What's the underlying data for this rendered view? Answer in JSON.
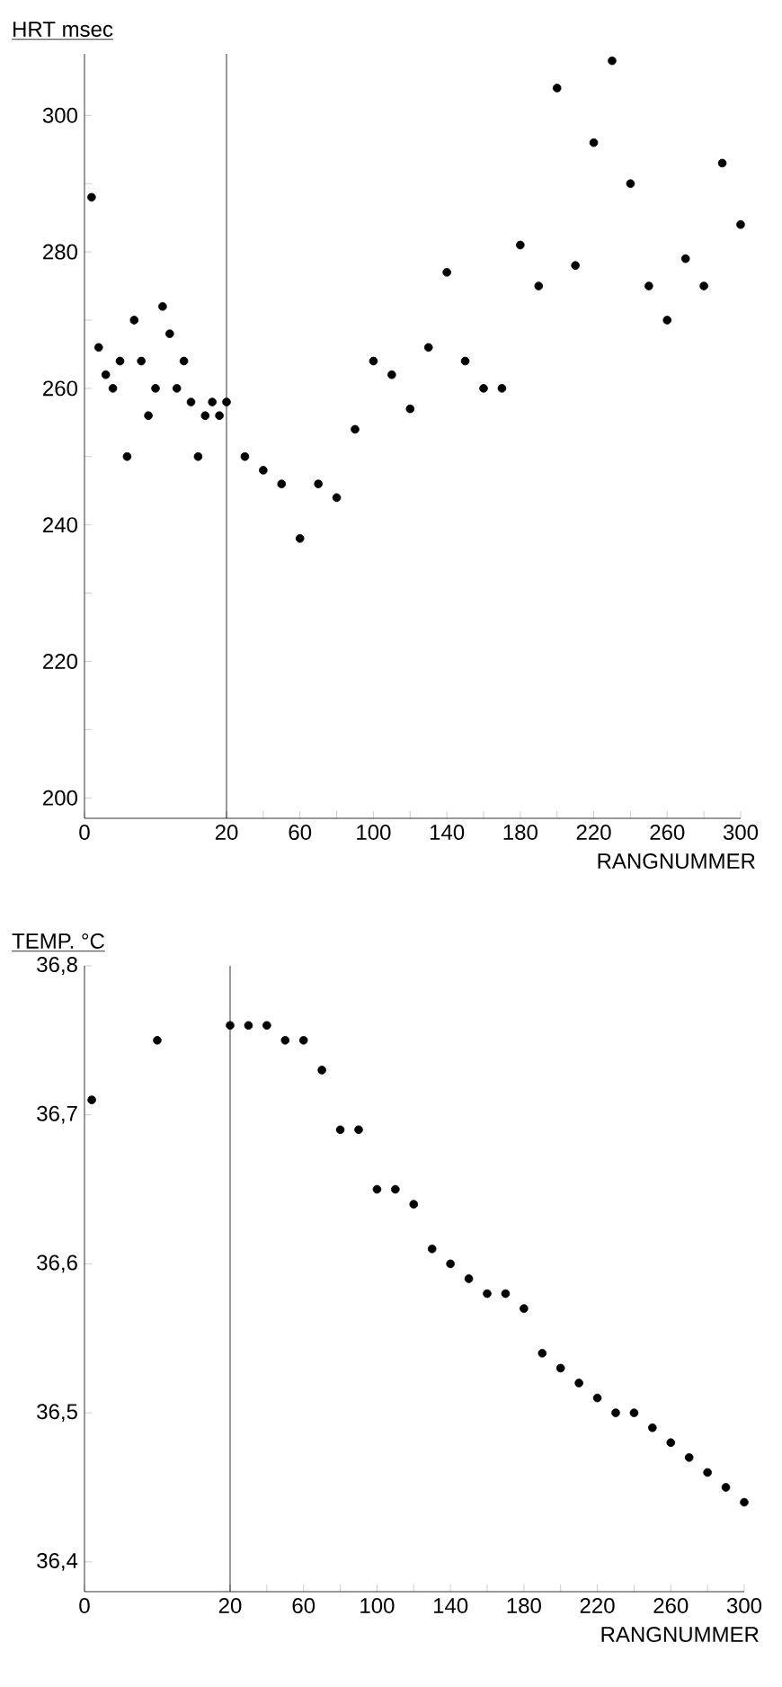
{
  "chart_data": [
    {
      "type": "scatter",
      "ylabel": "HRT msec",
      "color": "#000000",
      "marker": "circle",
      "x": [
        1,
        2,
        3,
        4,
        5,
        6,
        7,
        8,
        9,
        10,
        11,
        12,
        13,
        14,
        15,
        16,
        17,
        18,
        19,
        20
      ],
      "values": [
        288,
        266,
        262,
        260,
        264,
        250,
        270,
        264,
        256,
        260,
        272,
        268,
        260,
        264,
        258,
        250,
        256,
        258,
        256,
        258
      ],
      "xlim": [
        0,
        20
      ],
      "ylim": [
        197,
        309
      ],
      "xticks": [
        0,
        20
      ],
      "yticks": [
        200,
        {
          "value": 210,
          "label": null
        },
        220,
        {
          "value": 230,
          "label": null
        },
        240,
        {
          "value": 250,
          "label": null
        },
        260,
        {
          "value": 270,
          "label": null
        },
        280,
        {
          "value": 290,
          "label": null
        },
        300
      ]
    },
    {
      "type": "scatter",
      "xlabel": "RANGNUMMER",
      "color": "#000000",
      "marker": "circle",
      "tick_labels": "x",
      "x": [
        30,
        40,
        50,
        60,
        70,
        80,
        90,
        100,
        110,
        120,
        130,
        140,
        150,
        160,
        170,
        180,
        190,
        200,
        210,
        220,
        230,
        240,
        250,
        260,
        270,
        280,
        290,
        300
      ],
      "values": [
        250,
        248,
        246,
        238,
        246,
        244,
        254,
        264,
        262,
        257,
        266,
        277,
        264,
        260,
        260,
        281,
        275,
        304,
        278,
        296,
        308,
        290,
        275,
        270,
        279,
        275,
        293,
        284
      ],
      "xlim": [
        20,
        300
      ],
      "ylim": [
        197,
        309
      ],
      "xticks": [
        {
          "value": 20,
          "label": null
        },
        {
          "value": 40,
          "label": null
        },
        60,
        {
          "value": 80,
          "label": null
        },
        100,
        {
          "value": 120,
          "label": null
        },
        140,
        {
          "value": 160,
          "label": null
        },
        180,
        {
          "value": 200,
          "label": null
        },
        220,
        {
          "value": 240,
          "label": null
        },
        260,
        {
          "value": 280,
          "label": null
        },
        300
      ]
    },
    {
      "type": "scatter",
      "ylabel": "TEMP. °C",
      "color": "#000000",
      "marker": "circle",
      "x": [
        1,
        10,
        20
      ],
      "values": [
        36.71,
        36.75,
        36.76
      ],
      "xlim": [
        0,
        20
      ],
      "ylim": [
        36.38,
        36.8
      ],
      "xticks": [
        0,
        20
      ],
      "yticks": [
        {
          "value": 36.4,
          "label": "36,4"
        },
        {
          "value": 36.5,
          "label": "36,5"
        },
        {
          "value": 36.6,
          "label": "36,6"
        },
        {
          "value": 36.7,
          "label": "36,7"
        },
        {
          "value": 36.8,
          "label": "36,8"
        }
      ]
    },
    {
      "type": "scatter",
      "xlabel": "RANGNUMMER",
      "color": "#000000",
      "marker": "circle",
      "tick_labels": "x",
      "x": [
        30,
        40,
        50,
        60,
        70,
        80,
        90,
        100,
        110,
        120,
        130,
        140,
        150,
        160,
        170,
        180,
        190,
        200,
        210,
        220,
        230,
        240,
        250,
        260,
        270,
        280,
        290,
        300
      ],
      "values": [
        36.76,
        36.76,
        36.75,
        36.75,
        36.73,
        36.69,
        36.69,
        36.65,
        36.65,
        36.64,
        36.61,
        36.6,
        36.59,
        36.58,
        36.58,
        36.57,
        36.54,
        36.53,
        36.52,
        36.51,
        36.5,
        36.5,
        36.49,
        36.48,
        36.47,
        36.46,
        36.45,
        36.44
      ],
      "xlim": [
        20,
        300
      ],
      "ylim": [
        36.38,
        36.8
      ],
      "xticks": [
        {
          "value": 20,
          "label": null
        },
        {
          "value": 40,
          "label": null
        },
        60,
        {
          "value": 80,
          "label": null
        },
        100,
        {
          "value": 120,
          "label": null
        },
        140,
        {
          "value": 160,
          "label": null
        },
        180,
        {
          "value": 200,
          "label": null
        },
        220,
        {
          "value": 240,
          "label": null
        },
        260,
        {
          "value": 280,
          "label": null
        },
        300
      ]
    }
  ]
}
